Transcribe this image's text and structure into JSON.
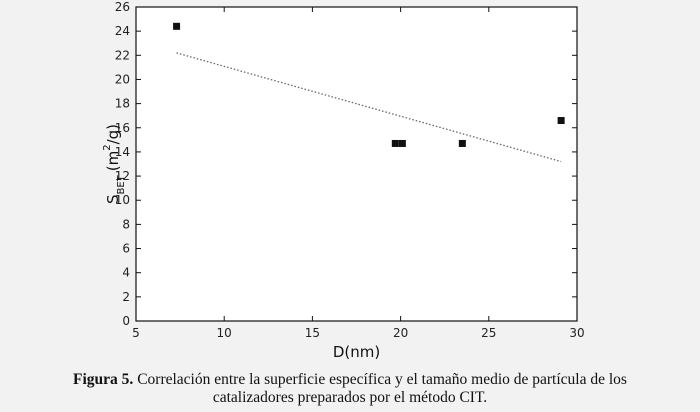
{
  "chart_data": {
    "type": "scatter",
    "xlabel": "D(nm)",
    "ylabel": {
      "main": "S",
      "subscript": "BET",
      "unit_prefix": "(m",
      "superscript": "2",
      "unit_suffix": "/g)"
    },
    "xlim": [
      5,
      30
    ],
    "ylim": [
      0,
      26
    ],
    "x_ticks": [
      5,
      10,
      15,
      20,
      25,
      30
    ],
    "y_ticks": [
      0,
      2,
      4,
      6,
      8,
      10,
      12,
      14,
      16,
      18,
      20,
      22,
      24,
      26
    ],
    "grid": false,
    "points": [
      {
        "x": 7.3,
        "y": 24.4
      },
      {
        "x": 19.7,
        "y": 14.7
      },
      {
        "x": 20.1,
        "y": 14.7
      },
      {
        "x": 23.5,
        "y": 14.7
      },
      {
        "x": 29.1,
        "y": 16.6
      }
    ],
    "trendline": {
      "x": [
        7.3,
        29.1
      ],
      "y": [
        22.2,
        13.2
      ],
      "style": "dotted"
    },
    "colors": {
      "marker": "#111111",
      "trendline": "#666666",
      "axes": "#111111"
    }
  },
  "caption": {
    "label": "Figura 5.",
    "text_line1": " Correlación entre  la superficie específica y  el tamaño medio de partícula de los",
    "text_line2": "catalizadores preparados por el método CIT."
  }
}
